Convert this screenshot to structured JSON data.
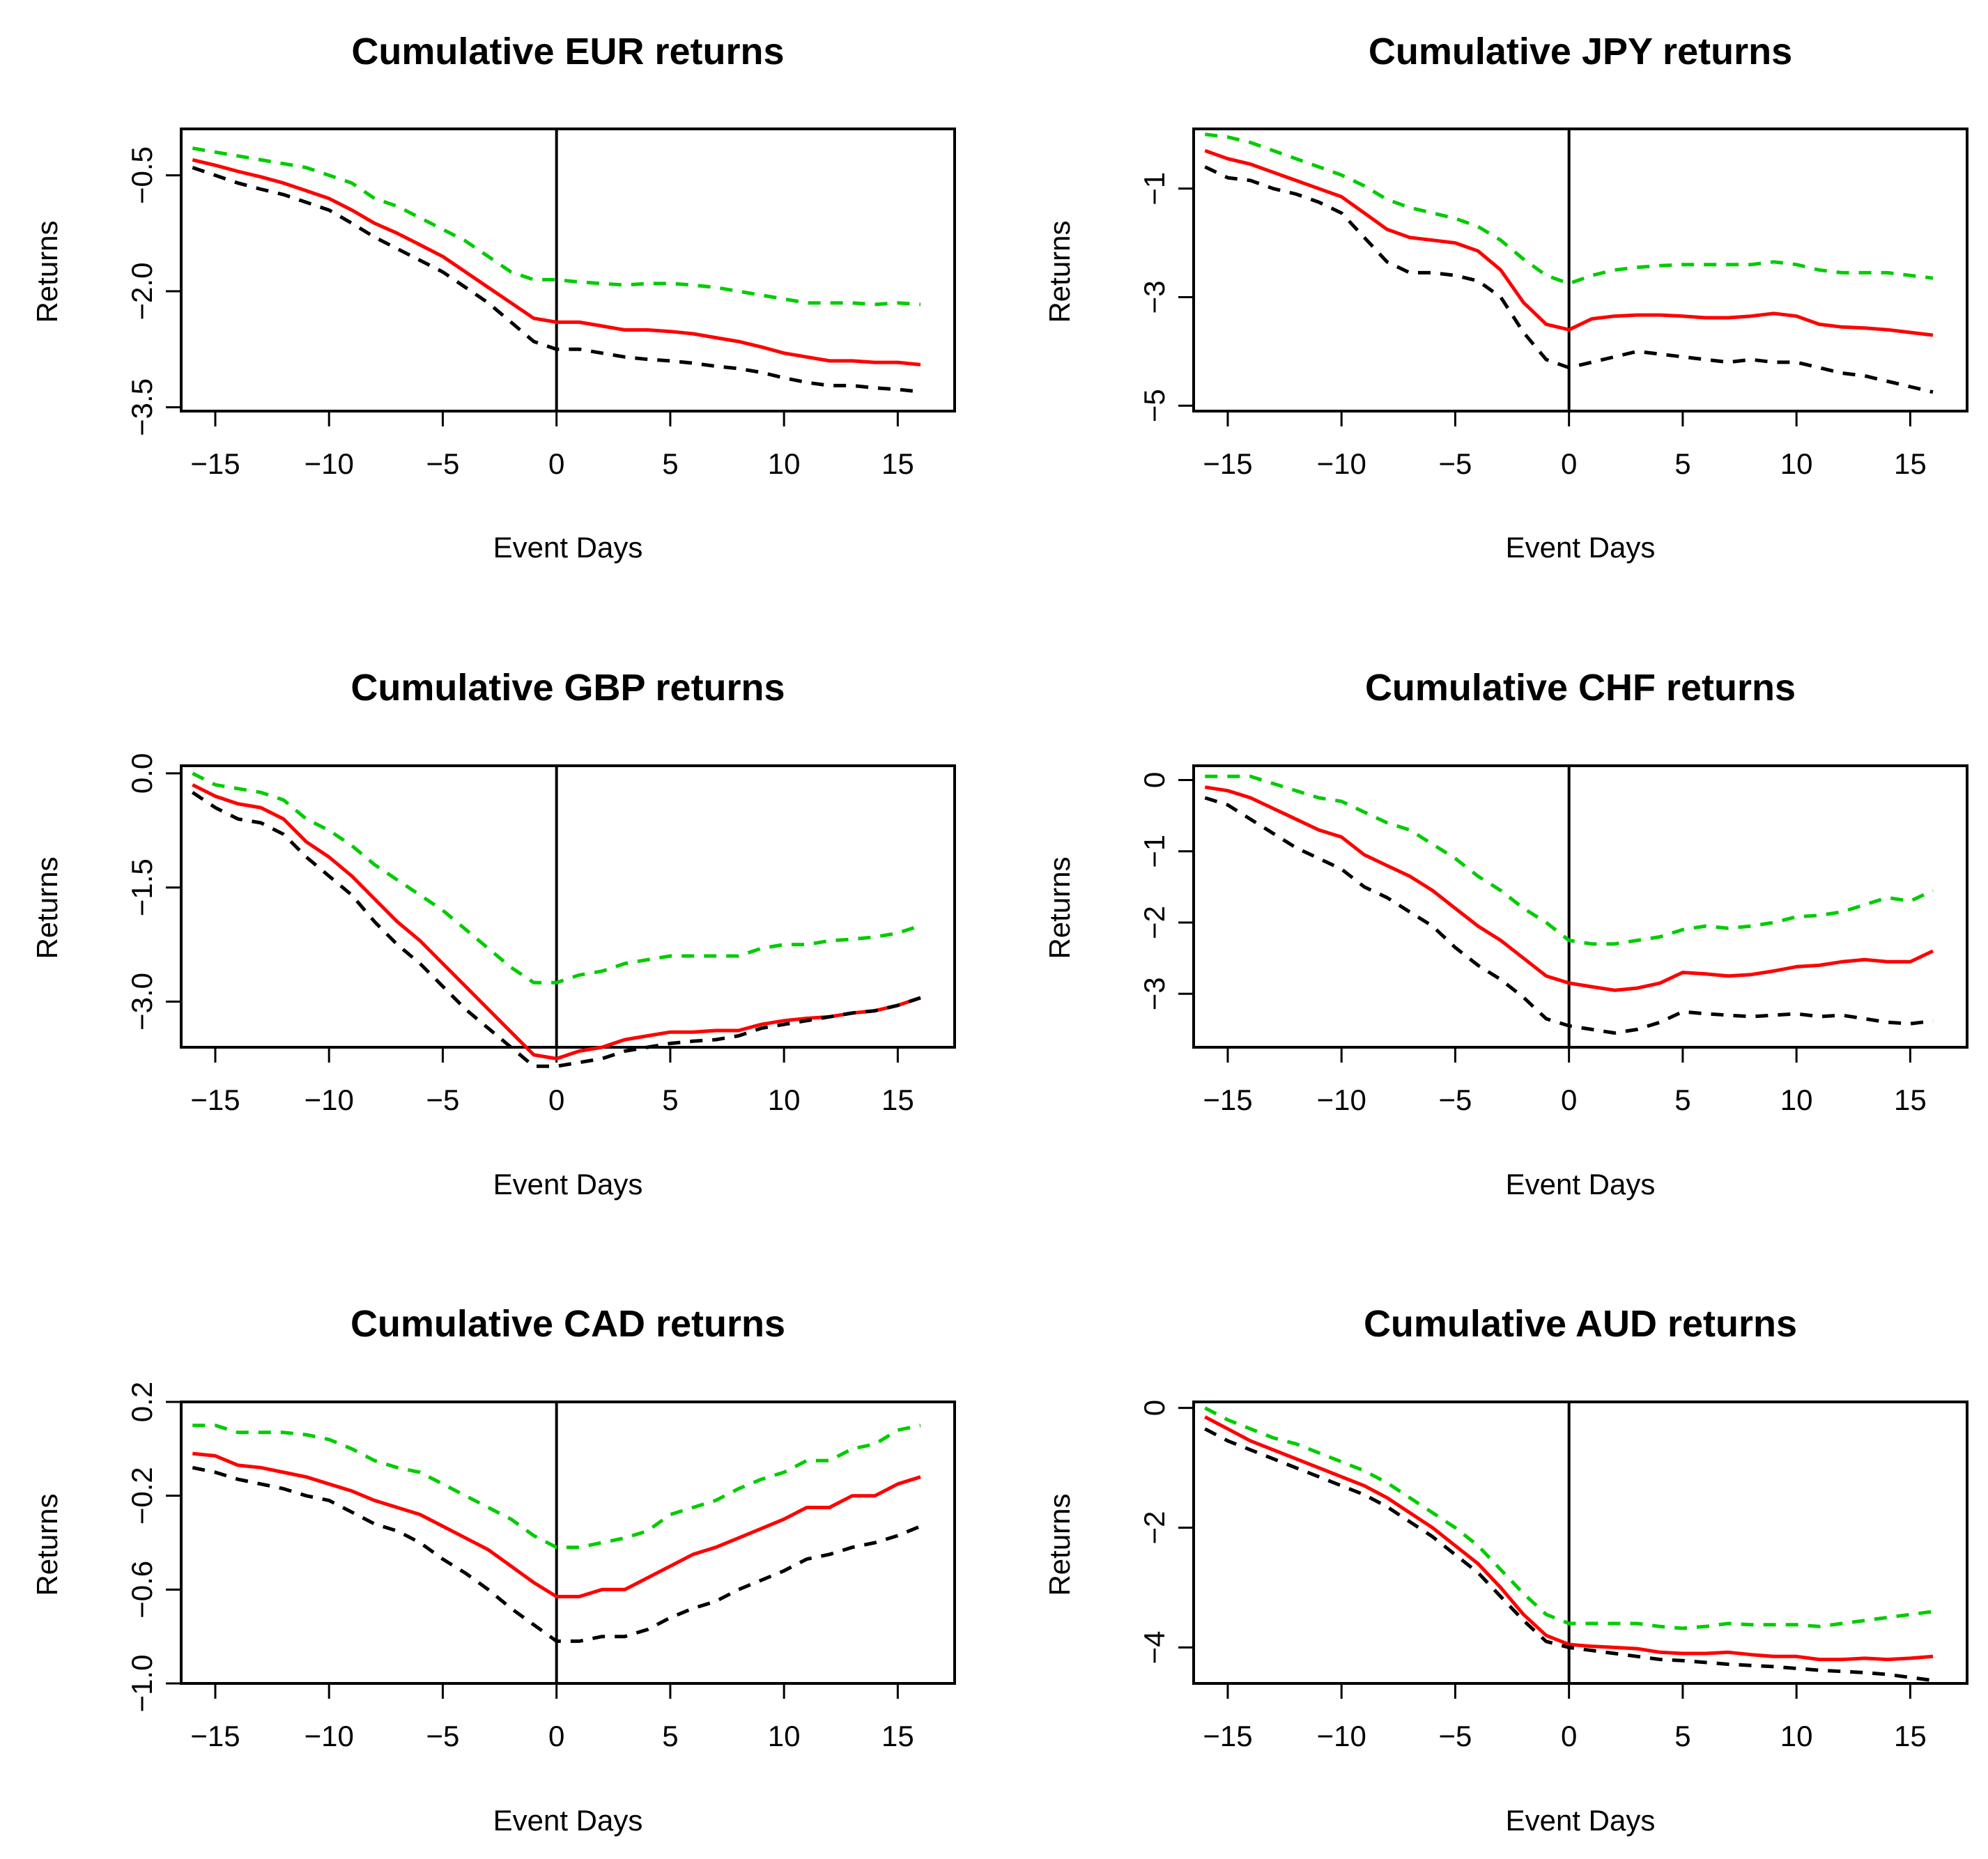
{
  "figure": {
    "colors": {
      "mean": "#ff0000",
      "upper": "#00cc00",
      "lower": "#000000",
      "axis": "#000000"
    }
  },
  "chart_data": [
    {
      "type": "line",
      "title": "Cumulative EUR returns",
      "xlabel": "Event Days",
      "ylabel": "Returns",
      "xlim": [
        -16.5,
        17.5
      ],
      "ylim": [
        -3.55,
        0.1
      ],
      "xticks": [
        -15,
        -10,
        -5,
        0,
        5,
        10,
        15
      ],
      "xtick_labels": [
        "−15",
        "−10",
        "−5",
        "0",
        "5",
        "10",
        "15"
      ],
      "yticks": [
        -0.5,
        -2.0,
        -3.5
      ],
      "ytick_labels": [
        "−0.5",
        "−2.0",
        "−3.5"
      ],
      "vline_x": 0,
      "x": [
        -16,
        -15,
        -14,
        -13,
        -12,
        -11,
        -10,
        -9,
        -8,
        -7,
        -6,
        -5,
        -4,
        -3,
        -2,
        -1,
        0,
        1,
        2,
        3,
        4,
        5,
        6,
        7,
        8,
        9,
        10,
        11,
        12,
        13,
        14,
        15,
        16
      ],
      "series": [
        {
          "name": "upper",
          "style": "dashed",
          "values": [
            -0.15,
            -0.2,
            -0.25,
            -0.3,
            -0.35,
            -0.4,
            -0.5,
            -0.6,
            -0.8,
            -0.9,
            -1.05,
            -1.2,
            -1.35,
            -1.55,
            -1.75,
            -1.85,
            -1.85,
            -1.88,
            -1.9,
            -1.92,
            -1.9,
            -1.9,
            -1.92,
            -1.95,
            -2.0,
            -2.05,
            -2.1,
            -2.15,
            -2.15,
            -2.15,
            -2.17,
            -2.15,
            -2.17
          ]
        },
        {
          "name": "mean",
          "style": "solid",
          "values": [
            -0.3,
            -0.37,
            -0.45,
            -0.52,
            -0.6,
            -0.7,
            -0.8,
            -0.95,
            -1.12,
            -1.25,
            -1.4,
            -1.55,
            -1.75,
            -1.95,
            -2.15,
            -2.35,
            -2.4,
            -2.4,
            -2.45,
            -2.5,
            -2.5,
            -2.52,
            -2.55,
            -2.6,
            -2.65,
            -2.72,
            -2.8,
            -2.85,
            -2.9,
            -2.9,
            -2.92,
            -2.92,
            -2.95
          ]
        },
        {
          "name": "lower",
          "style": "dashed",
          "values": [
            -0.4,
            -0.5,
            -0.6,
            -0.68,
            -0.75,
            -0.85,
            -0.95,
            -1.12,
            -1.3,
            -1.45,
            -1.6,
            -1.75,
            -1.95,
            -2.15,
            -2.4,
            -2.65,
            -2.75,
            -2.75,
            -2.8,
            -2.85,
            -2.88,
            -2.9,
            -2.93,
            -2.97,
            -3.0,
            -3.05,
            -3.12,
            -3.18,
            -3.22,
            -3.22,
            -3.25,
            -3.27,
            -3.3
          ]
        }
      ]
    },
    {
      "type": "line",
      "title": "Cumulative JPY returns",
      "xlabel": "Event Days",
      "ylabel": "Returns",
      "xlim": [
        -16.5,
        17.5
      ],
      "ylim": [
        -5.1,
        0.1
      ],
      "xticks": [
        -15,
        -10,
        -5,
        0,
        5,
        10,
        15
      ],
      "xtick_labels": [
        "−15",
        "−10",
        "−5",
        "0",
        "5",
        "10",
        "15"
      ],
      "yticks": [
        -1,
        -3,
        -5
      ],
      "ytick_labels": [
        "−1",
        "−3",
        "−5"
      ],
      "vline_x": 0,
      "x": [
        -16,
        -15,
        -14,
        -13,
        -12,
        -11,
        -10,
        -9,
        -8,
        -7,
        -6,
        -5,
        -4,
        -3,
        -2,
        -1,
        0,
        1,
        2,
        3,
        4,
        5,
        6,
        7,
        8,
        9,
        10,
        11,
        12,
        13,
        14,
        15,
        16
      ],
      "series": [
        {
          "name": "upper",
          "style": "dashed",
          "values": [
            0.0,
            -0.05,
            -0.15,
            -0.3,
            -0.45,
            -0.6,
            -0.75,
            -0.95,
            -1.2,
            -1.35,
            -1.45,
            -1.55,
            -1.7,
            -1.95,
            -2.3,
            -2.6,
            -2.75,
            -2.6,
            -2.5,
            -2.45,
            -2.42,
            -2.4,
            -2.4,
            -2.4,
            -2.4,
            -2.35,
            -2.4,
            -2.5,
            -2.55,
            -2.55,
            -2.55,
            -2.6,
            -2.65
          ]
        },
        {
          "name": "mean",
          "style": "solid",
          "values": [
            -0.3,
            -0.45,
            -0.55,
            -0.7,
            -0.85,
            -1.0,
            -1.15,
            -1.45,
            -1.75,
            -1.9,
            -1.95,
            -2.0,
            -2.15,
            -2.5,
            -3.1,
            -3.5,
            -3.6,
            -3.4,
            -3.35,
            -3.33,
            -3.33,
            -3.35,
            -3.38,
            -3.38,
            -3.35,
            -3.3,
            -3.35,
            -3.5,
            -3.55,
            -3.57,
            -3.6,
            -3.65,
            -3.7
          ]
        },
        {
          "name": "lower",
          "style": "dashed",
          "values": [
            -0.6,
            -0.8,
            -0.85,
            -1.0,
            -1.1,
            -1.25,
            -1.45,
            -1.9,
            -2.35,
            -2.55,
            -2.55,
            -2.6,
            -2.7,
            -3.0,
            -3.65,
            -4.15,
            -4.3,
            -4.2,
            -4.1,
            -4.0,
            -4.05,
            -4.1,
            -4.15,
            -4.2,
            -4.15,
            -4.2,
            -4.2,
            -4.3,
            -4.4,
            -4.45,
            -4.55,
            -4.65,
            -4.75
          ]
        }
      ]
    },
    {
      "type": "line",
      "title": "Cumulative GBP returns",
      "xlabel": "Event Days",
      "ylabel": "Returns",
      "xlim": [
        -16.5,
        17.5
      ],
      "ylim": [
        -3.6,
        0.1
      ],
      "xticks": [
        -15,
        -10,
        -5,
        0,
        5,
        10,
        15
      ],
      "xtick_labels": [
        "−15",
        "−10",
        "−5",
        "0",
        "5",
        "10",
        "15"
      ],
      "yticks": [
        0.0,
        -1.5,
        -3.0
      ],
      "ytick_labels": [
        "0.0",
        "−1.5",
        "−3.0"
      ],
      "vline_x": 0,
      "x": [
        -16,
        -15,
        -14,
        -13,
        -12,
        -11,
        -10,
        -9,
        -8,
        -7,
        -6,
        -5,
        -4,
        -3,
        -2,
        -1,
        0,
        1,
        2,
        3,
        4,
        5,
        6,
        7,
        8,
        9,
        10,
        11,
        12,
        13,
        14,
        15,
        16
      ],
      "series": [
        {
          "name": "upper",
          "style": "dashed",
          "values": [
            0.0,
            -0.15,
            -0.2,
            -0.25,
            -0.35,
            -0.6,
            -0.75,
            -0.95,
            -1.2,
            -1.4,
            -1.6,
            -1.8,
            -2.05,
            -2.3,
            -2.55,
            -2.75,
            -2.75,
            -2.65,
            -2.6,
            -2.5,
            -2.45,
            -2.4,
            -2.4,
            -2.4,
            -2.4,
            -2.3,
            -2.25,
            -2.25,
            -2.2,
            -2.18,
            -2.15,
            -2.1,
            -2.0
          ]
        },
        {
          "name": "mean",
          "style": "solid",
          "values": [
            -0.15,
            -0.3,
            -0.4,
            -0.45,
            -0.6,
            -0.9,
            -1.1,
            -1.35,
            -1.65,
            -1.95,
            -2.2,
            -2.5,
            -2.8,
            -3.1,
            -3.4,
            -3.7,
            -3.75,
            -3.65,
            -3.6,
            -3.5,
            -3.45,
            -3.4,
            -3.4,
            -3.38,
            -3.38,
            -3.3,
            -3.25,
            -3.22,
            -3.2,
            -3.15,
            -3.12,
            -3.05,
            -2.95
          ]
        },
        {
          "name": "lower",
          "style": "dashed",
          "values": [
            -0.25,
            -0.45,
            -0.6,
            -0.65,
            -0.8,
            -1.1,
            -1.35,
            -1.6,
            -1.95,
            -2.25,
            -2.5,
            -2.8,
            -3.1,
            -3.35,
            -3.6,
            -3.85,
            -3.85,
            -3.8,
            -3.75,
            -3.65,
            -3.6,
            -3.55,
            -3.52,
            -3.5,
            -3.45,
            -3.35,
            -3.3,
            -3.25,
            -3.2,
            -3.15,
            -3.12,
            -3.05,
            -2.95
          ]
        }
      ]
    },
    {
      "type": "line",
      "title": "Cumulative CHF returns",
      "xlabel": "Event Days",
      "ylabel": "Returns",
      "xlim": [
        -16.5,
        17.5
      ],
      "ylim": [
        -3.75,
        0.2
      ],
      "xticks": [
        -15,
        -10,
        -5,
        0,
        5,
        10,
        15
      ],
      "xtick_labels": [
        "−15",
        "−10",
        "−5",
        "0",
        "5",
        "10",
        "15"
      ],
      "yticks": [
        0,
        -1,
        -2,
        -3
      ],
      "ytick_labels": [
        "0",
        "−1",
        "−2",
        "−3"
      ],
      "vline_x": 0,
      "x": [
        -16,
        -15,
        -14,
        -13,
        -12,
        -11,
        -10,
        -9,
        -8,
        -7,
        -6,
        -5,
        -4,
        -3,
        -2,
        -1,
        0,
        1,
        2,
        3,
        4,
        5,
        6,
        7,
        8,
        9,
        10,
        11,
        12,
        13,
        14,
        15,
        16
      ],
      "series": [
        {
          "name": "upper",
          "style": "dashed",
          "values": [
            0.05,
            0.05,
            0.05,
            -0.05,
            -0.15,
            -0.25,
            -0.3,
            -0.45,
            -0.6,
            -0.7,
            -0.9,
            -1.1,
            -1.35,
            -1.55,
            -1.8,
            -2.0,
            -2.25,
            -2.3,
            -2.3,
            -2.25,
            -2.2,
            -2.1,
            -2.05,
            -2.08,
            -2.05,
            -2.0,
            -1.92,
            -1.9,
            -1.85,
            -1.75,
            -1.65,
            -1.7,
            -1.55
          ]
        },
        {
          "name": "mean",
          "style": "solid",
          "values": [
            -0.1,
            -0.15,
            -0.25,
            -0.4,
            -0.55,
            -0.7,
            -0.8,
            -1.05,
            -1.2,
            -1.35,
            -1.55,
            -1.8,
            -2.05,
            -2.25,
            -2.5,
            -2.75,
            -2.85,
            -2.9,
            -2.95,
            -2.92,
            -2.85,
            -2.7,
            -2.72,
            -2.75,
            -2.73,
            -2.68,
            -2.62,
            -2.6,
            -2.55,
            -2.52,
            -2.55,
            -2.55,
            -2.4
          ]
        },
        {
          "name": "lower",
          "style": "dashed",
          "values": [
            -0.25,
            -0.35,
            -0.55,
            -0.75,
            -0.95,
            -1.1,
            -1.25,
            -1.5,
            -1.65,
            -1.85,
            -2.05,
            -2.35,
            -2.6,
            -2.8,
            -3.05,
            -3.35,
            -3.45,
            -3.5,
            -3.55,
            -3.5,
            -3.4,
            -3.25,
            -3.28,
            -3.3,
            -3.32,
            -3.3,
            -3.28,
            -3.32,
            -3.3,
            -3.35,
            -3.4,
            -3.42,
            -3.38
          ]
        }
      ]
    },
    {
      "type": "line",
      "title": "Cumulative CAD returns",
      "xlabel": "Event Days",
      "ylabel": "Returns",
      "xlim": [
        -16.5,
        17.5
      ],
      "ylim": [
        -1.0,
        0.2
      ],
      "xticks": [
        -15,
        -10,
        -5,
        0,
        5,
        10,
        15
      ],
      "xtick_labels": [
        "−15",
        "−10",
        "−5",
        "0",
        "5",
        "10",
        "15"
      ],
      "yticks": [
        0.2,
        -0.2,
        -0.6,
        -1.0
      ],
      "ytick_labels": [
        "0.2",
        "−0.2",
        "−0.6",
        "−1.0"
      ],
      "vline_x": 0,
      "x": [
        -16,
        -15,
        -14,
        -13,
        -12,
        -11,
        -10,
        -9,
        -8,
        -7,
        -6,
        -5,
        -4,
        -3,
        -2,
        -1,
        0,
        1,
        2,
        3,
        4,
        5,
        6,
        7,
        8,
        9,
        10,
        11,
        12,
        13,
        14,
        15,
        16
      ],
      "series": [
        {
          "name": "upper",
          "style": "dashed",
          "values": [
            0.1,
            0.1,
            0.07,
            0.07,
            0.07,
            0.06,
            0.04,
            0.0,
            -0.05,
            -0.08,
            -0.1,
            -0.15,
            -0.2,
            -0.25,
            -0.3,
            -0.37,
            -0.42,
            -0.42,
            -0.4,
            -0.38,
            -0.35,
            -0.28,
            -0.25,
            -0.22,
            -0.17,
            -0.13,
            -0.1,
            -0.05,
            -0.05,
            0.0,
            0.02,
            0.08,
            0.1
          ]
        },
        {
          "name": "mean",
          "style": "solid",
          "values": [
            -0.02,
            -0.03,
            -0.07,
            -0.08,
            -0.1,
            -0.12,
            -0.15,
            -0.18,
            -0.22,
            -0.25,
            -0.28,
            -0.33,
            -0.38,
            -0.43,
            -0.5,
            -0.57,
            -0.63,
            -0.63,
            -0.6,
            -0.6,
            -0.55,
            -0.5,
            -0.45,
            -0.42,
            -0.38,
            -0.34,
            -0.3,
            -0.25,
            -0.25,
            -0.2,
            -0.2,
            -0.15,
            -0.12
          ]
        },
        {
          "name": "lower",
          "style": "dashed",
          "values": [
            -0.08,
            -0.1,
            -0.13,
            -0.15,
            -0.17,
            -0.2,
            -0.22,
            -0.27,
            -0.32,
            -0.35,
            -0.4,
            -0.47,
            -0.53,
            -0.6,
            -0.68,
            -0.75,
            -0.82,
            -0.82,
            -0.8,
            -0.8,
            -0.77,
            -0.72,
            -0.68,
            -0.65,
            -0.6,
            -0.56,
            -0.52,
            -0.47,
            -0.45,
            -0.42,
            -0.4,
            -0.37,
            -0.33
          ]
        }
      ]
    },
    {
      "type": "line",
      "title": "Cumulative AUD returns",
      "xlabel": "Event Days",
      "ylabel": "Returns",
      "xlim": [
        -16.5,
        17.5
      ],
      "ylim": [
        -4.6,
        0.1
      ],
      "xticks": [
        -15,
        -10,
        -5,
        0,
        5,
        10,
        15
      ],
      "xtick_labels": [
        "−15",
        "−10",
        "−5",
        "0",
        "5",
        "10",
        "15"
      ],
      "yticks": [
        0,
        -2,
        -4
      ],
      "ytick_labels": [
        "0",
        "−2",
        "−4"
      ],
      "vline_x": 0,
      "x": [
        -16,
        -15,
        -14,
        -13,
        -12,
        -11,
        -10,
        -9,
        -8,
        -7,
        -6,
        -5,
        -4,
        -3,
        -2,
        -1,
        0,
        1,
        2,
        3,
        4,
        5,
        6,
        7,
        8,
        9,
        10,
        11,
        12,
        13,
        14,
        15,
        16
      ],
      "series": [
        {
          "name": "upper",
          "style": "dashed",
          "values": [
            0.0,
            -0.2,
            -0.35,
            -0.5,
            -0.6,
            -0.75,
            -0.9,
            -1.05,
            -1.25,
            -1.5,
            -1.75,
            -2.0,
            -2.3,
            -2.7,
            -3.1,
            -3.45,
            -3.6,
            -3.6,
            -3.6,
            -3.6,
            -3.65,
            -3.68,
            -3.65,
            -3.6,
            -3.62,
            -3.62,
            -3.62,
            -3.65,
            -3.6,
            -3.55,
            -3.5,
            -3.45,
            -3.4
          ]
        },
        {
          "name": "mean",
          "style": "solid",
          "values": [
            -0.15,
            -0.35,
            -0.55,
            -0.7,
            -0.85,
            -1.0,
            -1.15,
            -1.3,
            -1.5,
            -1.75,
            -2.0,
            -2.3,
            -2.6,
            -3.0,
            -3.45,
            -3.8,
            -3.95,
            -3.98,
            -4.0,
            -4.02,
            -4.08,
            -4.1,
            -4.1,
            -4.08,
            -4.12,
            -4.15,
            -4.15,
            -4.2,
            -4.2,
            -4.18,
            -4.2,
            -4.18,
            -4.15
          ]
        },
        {
          "name": "lower",
          "style": "dashed",
          "values": [
            -0.35,
            -0.55,
            -0.7,
            -0.85,
            -1.0,
            -1.15,
            -1.3,
            -1.45,
            -1.65,
            -1.9,
            -2.15,
            -2.45,
            -2.75,
            -3.15,
            -3.55,
            -3.9,
            -4.0,
            -4.05,
            -4.1,
            -4.15,
            -4.2,
            -4.22,
            -4.25,
            -4.28,
            -4.3,
            -4.32,
            -4.35,
            -4.38,
            -4.4,
            -4.42,
            -4.45,
            -4.5,
            -4.55
          ]
        }
      ]
    }
  ]
}
